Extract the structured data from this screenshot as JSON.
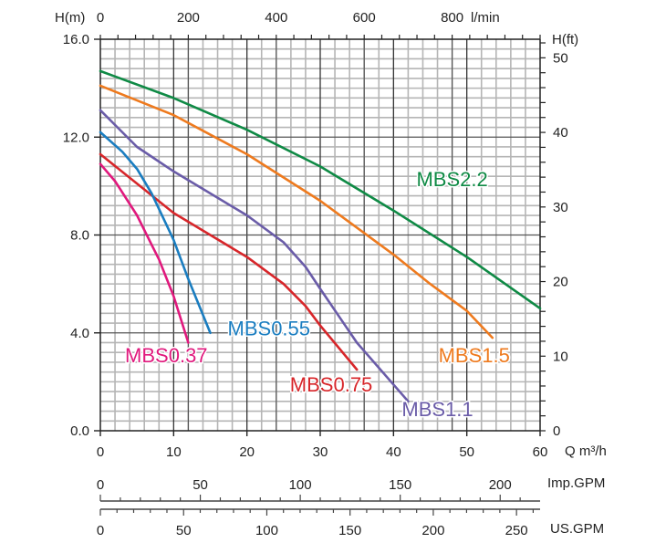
{
  "chart_data": {
    "type": "line",
    "title": "",
    "xlabel": "Q m³/h",
    "ylabel": "H(m)",
    "xlim": [
      0,
      60
    ],
    "ylim": [
      0,
      16
    ],
    "grid": true,
    "x_ticks": [
      0,
      10,
      20,
      30,
      40,
      50,
      60
    ],
    "y_ticks": [
      "0.0",
      "4.0",
      "8.0",
      "12.0",
      "16.0"
    ],
    "y_tick_values": [
      0,
      4,
      8,
      12,
      16
    ],
    "secondary_axes": {
      "top": {
        "label": "l/min",
        "ticks": [
          0,
          200,
          400,
          600,
          800
        ],
        "max": 1000
      },
      "right": {
        "label": "H(ft)",
        "ticks": [
          0,
          10,
          20,
          30,
          40,
          50
        ],
        "max": 52.49
      },
      "imp_gpm": {
        "label": "Imp.GPM",
        "ticks": [
          0,
          50,
          100,
          150,
          200
        ],
        "max": 219.97
      },
      "us_gpm": {
        "label": "US.GPM",
        "ticks": [
          0,
          50,
          100,
          150,
          200,
          250
        ],
        "max": 264.17
      }
    },
    "series": [
      {
        "name": "MBS2.2",
        "color": "#0f8a45",
        "x": [
          0,
          10,
          20,
          30,
          40,
          50,
          60
        ],
        "y": [
          14.7,
          13.6,
          12.3,
          10.8,
          9.0,
          7.1,
          5.0
        ],
        "label_at": [
          48,
          10.0
        ]
      },
      {
        "name": "MBS1.5",
        "color": "#ee7a1e",
        "x": [
          0,
          10,
          20,
          30,
          40,
          45,
          50,
          53.5
        ],
        "y": [
          14.1,
          12.9,
          11.3,
          9.4,
          7.2,
          6.0,
          4.9,
          3.8
        ],
        "label_at": [
          51,
          2.8
        ]
      },
      {
        "name": "MBS1.1",
        "color": "#6a5ca8",
        "x": [
          0,
          5,
          10,
          20,
          25,
          28,
          30,
          35,
          42
        ],
        "y": [
          13.1,
          11.6,
          10.6,
          8.8,
          7.7,
          6.7,
          5.8,
          3.6,
          1.2
        ],
        "label_at": [
          46,
          0.6
        ]
      },
      {
        "name": "MBS0.75",
        "color": "#d7262a",
        "x": [
          0,
          10,
          20,
          25,
          28,
          30,
          35
        ],
        "y": [
          11.3,
          8.9,
          7.1,
          6.0,
          5.1,
          4.3,
          2.5
        ],
        "label_at": [
          31.5,
          1.6
        ]
      },
      {
        "name": "MBS0.55",
        "color": "#1a7dc0",
        "x": [
          0,
          3,
          5,
          7,
          10,
          12,
          15
        ],
        "y": [
          12.2,
          11.4,
          10.7,
          9.7,
          7.8,
          6.2,
          4.0
        ],
        "label_at": [
          23,
          3.9
        ]
      },
      {
        "name": "MBS0.37",
        "color": "#e0197d",
        "x": [
          0,
          2,
          5,
          7,
          8,
          10,
          12
        ],
        "y": [
          10.9,
          10.2,
          8.8,
          7.6,
          7.0,
          5.5,
          3.6
        ],
        "label_at": [
          9,
          2.8
        ]
      }
    ]
  }
}
